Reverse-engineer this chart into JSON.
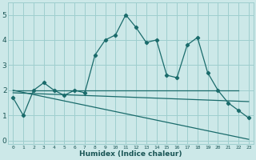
{
  "xlabel": "Humidex (Indice chaleur)",
  "bg_color": "#cce8e8",
  "grid_color": "#9ecece",
  "line_color": "#1a6b6b",
  "x_ticks": [
    0,
    1,
    2,
    3,
    4,
    5,
    6,
    7,
    8,
    9,
    10,
    11,
    12,
    13,
    14,
    15,
    16,
    17,
    18,
    19,
    20,
    21,
    22,
    23
  ],
  "ylim": [
    -0.15,
    5.5
  ],
  "xlim": [
    -0.5,
    23.5
  ],
  "line1_x": [
    0,
    1,
    2,
    3,
    4,
    5,
    6,
    7,
    8,
    9,
    10,
    11,
    12,
    13,
    14,
    15,
    16,
    17,
    18,
    19,
    20,
    21,
    22,
    23
  ],
  "line1_y": [
    1.7,
    1.0,
    2.0,
    2.3,
    2.0,
    1.8,
    2.0,
    1.9,
    3.4,
    4.0,
    4.2,
    5.0,
    4.5,
    3.9,
    4.0,
    2.6,
    2.5,
    3.8,
    4.1,
    2.7,
    2.0,
    1.5,
    1.2,
    0.9
  ],
  "line2_x": [
    0,
    22
  ],
  "line2_y": [
    2.0,
    2.0
  ],
  "line3_x": [
    0,
    23
  ],
  "line3_y": [
    1.9,
    1.55
  ],
  "line4_x": [
    0,
    23
  ],
  "line4_y": [
    2.0,
    0.05
  ]
}
